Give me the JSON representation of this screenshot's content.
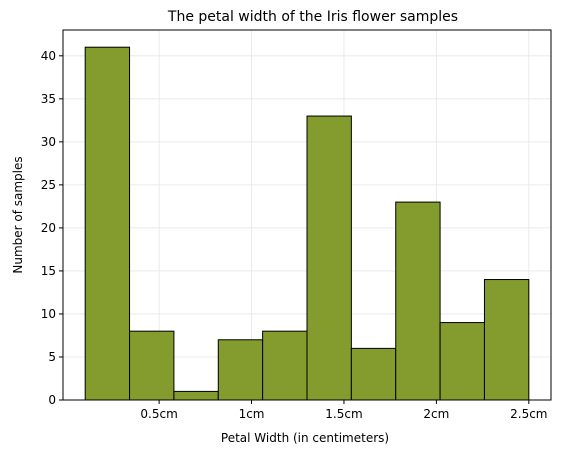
{
  "chart_data": {
    "type": "bar",
    "title": "The petal width of the Iris flower samples",
    "xlabel": "Petal Width (in centimeters)",
    "ylabel": "Number of samples",
    "bins": [
      {
        "start": 0.1,
        "end": 0.34,
        "count": 41
      },
      {
        "start": 0.34,
        "end": 0.58,
        "count": 8
      },
      {
        "start": 0.58,
        "end": 0.82,
        "count": 1
      },
      {
        "start": 0.82,
        "end": 1.06,
        "count": 7
      },
      {
        "start": 1.06,
        "end": 1.3,
        "count": 8
      },
      {
        "start": 1.3,
        "end": 1.54,
        "count": 33
      },
      {
        "start": 1.54,
        "end": 1.78,
        "count": 6
      },
      {
        "start": 1.78,
        "end": 2.02,
        "count": 23
      },
      {
        "start": 2.02,
        "end": 2.26,
        "count": 9
      },
      {
        "start": 2.26,
        "end": 2.5,
        "count": 14
      }
    ],
    "xlim": [
      -0.02,
      2.62
    ],
    "ylim": [
      0,
      43
    ],
    "xticks": [
      {
        "value": 0.5,
        "label": "0.5cm"
      },
      {
        "value": 1.0,
        "label": "1cm"
      },
      {
        "value": 1.5,
        "label": "1.5cm"
      },
      {
        "value": 2.0,
        "label": "2cm"
      },
      {
        "value": 2.5,
        "label": "2.5cm"
      }
    ],
    "yticks": [
      {
        "value": 0,
        "label": "0"
      },
      {
        "value": 5,
        "label": "5"
      },
      {
        "value": 10,
        "label": "10"
      },
      {
        "value": 15,
        "label": "15"
      },
      {
        "value": 20,
        "label": "20"
      },
      {
        "value": 25,
        "label": "25"
      },
      {
        "value": 30,
        "label": "30"
      },
      {
        "value": 35,
        "label": "35"
      },
      {
        "value": 40,
        "label": "40"
      }
    ],
    "grid": true,
    "bar_color": "#849b2d",
    "edge_color": "#000000"
  }
}
